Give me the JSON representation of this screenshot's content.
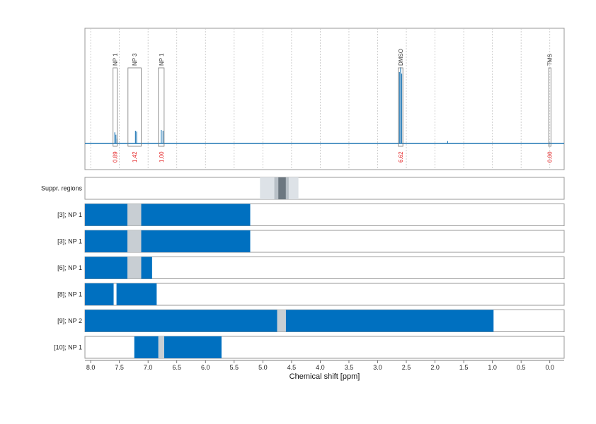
{
  "chart_data": {
    "type": "line",
    "xlabel": "Chemical shift [ppm]",
    "x_ticks": [
      "8.0",
      "7.5",
      "7.0",
      "6.5",
      "6.0",
      "5.5",
      "5.0",
      "4.5",
      "4.0",
      "3.5",
      "3.0",
      "2.5",
      "2.0",
      "1.5",
      "1.0",
      "0.5",
      "0.0"
    ],
    "xlim": [
      8.1,
      -0.25
    ],
    "x_reversed": true,
    "spectrum": {
      "baseline": 0.02,
      "peaks": [
        {
          "x": 7.58,
          "y": 0.16
        },
        {
          "x": 7.56,
          "y": 0.13
        },
        {
          "x": 7.54,
          "y": 0.08
        },
        {
          "x": 7.22,
          "y": 0.18
        },
        {
          "x": 7.2,
          "y": 0.17
        },
        {
          "x": 6.77,
          "y": 0.19
        },
        {
          "x": 6.74,
          "y": 0.18
        },
        {
          "x": 2.62,
          "y": 0.92
        },
        {
          "x": 2.6,
          "y": 0.98
        },
        {
          "x": 2.58,
          "y": 0.9
        },
        {
          "x": 1.78,
          "y": 0.05
        },
        {
          "x": 1.15,
          "y": 0.02
        },
        {
          "x": 0.0,
          "y": 0.03
        }
      ]
    },
    "annotations": [
      {
        "label": "NP 1",
        "range": [
          7.61,
          7.54
        ],
        "integral": "0.89"
      },
      {
        "label": "NP 3",
        "range": [
          7.35,
          7.12
        ],
        "integral": "1.42"
      },
      {
        "label": "NP 1",
        "range": [
          6.82,
          6.72
        ],
        "integral": "1.00"
      },
      {
        "label": "DMSO",
        "range": [
          2.64,
          2.56
        ],
        "integral": "6.62"
      },
      {
        "label": "TMS",
        "range": [
          0.02,
          -0.02
        ],
        "integral": "0.00"
      }
    ],
    "suppression": {
      "label": "Suppr. regions",
      "outer": [
        5.05,
        4.38
      ],
      "middle": [
        4.8,
        4.55
      ],
      "inner": [
        4.73,
        4.6
      ]
    },
    "rows": [
      {
        "label": "[3]; NP 1",
        "segments": [
          [
            8.2,
            7.36
          ],
          [
            7.12,
            5.22
          ]
        ],
        "gaps": [
          [
            7.36,
            7.12
          ]
        ]
      },
      {
        "label": "[3]; NP 1",
        "segments": [
          [
            8.2,
            7.36
          ],
          [
            7.12,
            5.22
          ]
        ],
        "gaps": [
          [
            7.36,
            7.12
          ]
        ]
      },
      {
        "label": "[6]; NP 1",
        "segments": [
          [
            8.2,
            7.36
          ],
          [
            7.12,
            6.93
          ]
        ],
        "gaps": [
          [
            7.36,
            7.12
          ]
        ]
      },
      {
        "label": "[8]; NP 1",
        "segments": [
          [
            8.2,
            7.6
          ],
          [
            7.55,
            6.85
          ]
        ],
        "gaps": []
      },
      {
        "label": "[9]; NP 2",
        "segments": [
          [
            8.2,
            4.75
          ],
          [
            4.6,
            0.98
          ]
        ],
        "gaps": [
          [
            4.75,
            4.6
          ]
        ]
      },
      {
        "label": "[10]; NP 1",
        "segments": [
          [
            7.24,
            6.82
          ],
          [
            6.72,
            5.72
          ]
        ],
        "gaps": [
          [
            6.82,
            6.72
          ]
        ]
      }
    ],
    "colors": {
      "spectrum": "#1f77b4",
      "segment": "#0070c0",
      "gap": "#c8ced3",
      "integral": "#e31a1c",
      "supp_outer": "#dde2e7",
      "supp_middle": "#b8c0c7",
      "supp_inner": "#6c7780"
    }
  }
}
